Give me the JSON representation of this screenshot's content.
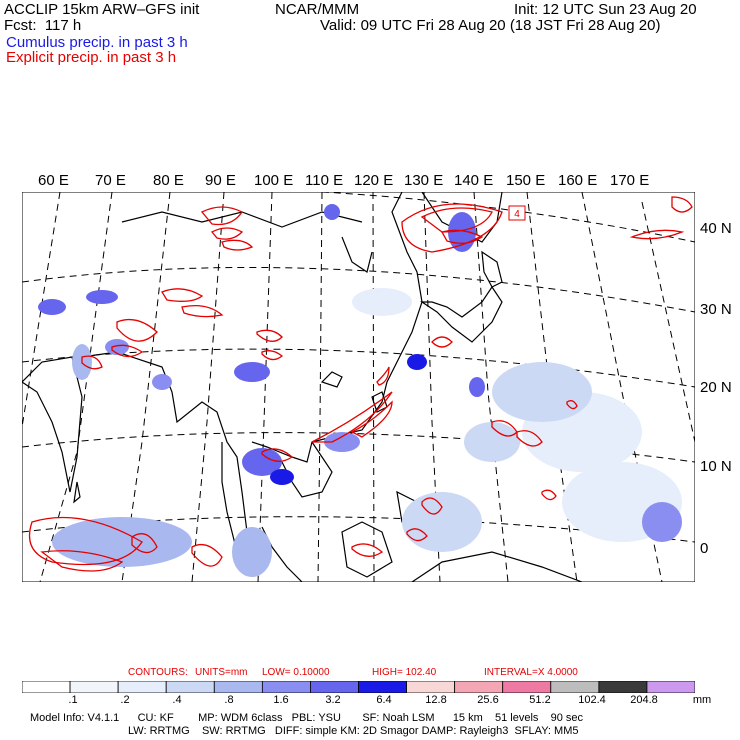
{
  "header": {
    "title": "ACCLIP 15km ARW–GFS init",
    "forecast": "Fcst:  117 h",
    "center": "NCAR/MMM",
    "init": "Init: 12 UTC Sun 23 Aug 20",
    "valid": "Valid: 09 UTC Fri 28 Aug 20 (18 JST Fri 28 Aug 20)",
    "cumulus_label": "Cumulus precip. in past 3 h",
    "explicit_label": "Explicit precip. in past 3 h"
  },
  "colors": {
    "cumulus": "#1a1ae6",
    "explicit": "#e60000",
    "land": "#000000"
  },
  "map": {
    "lon_labels": [
      "60 E",
      "70 E",
      "80 E",
      "90 E",
      "100 E",
      "110 E",
      "120 E",
      "130 E",
      "140 E",
      "150 E",
      "160 E",
      "170 E"
    ],
    "lat_labels": [
      "40 N",
      "30 N",
      "20 N",
      "10 N",
      "0"
    ],
    "box_label": "4"
  },
  "contours": {
    "title": "CONTOURS:",
    "units": "UNITS=mm",
    "low": "LOW= 0.10000",
    "high": "HIGH= 102.40",
    "interval": "INTERVAL=X 4.0000"
  },
  "colorbar": {
    "labels": [
      ".1",
      ".2",
      ".4",
      ".8",
      "1.6",
      "3.2",
      "6.4",
      "12.8",
      "25.6",
      "51.2",
      "102.4",
      "204.8"
    ],
    "unit": "mm",
    "fills": [
      "#ffffff",
      "#f2f6fb",
      "#e6eefb",
      "#ccd9f5",
      "#aab8f0",
      "#8a8ef0",
      "#6565ee",
      "#1a1ae6",
      "#f8d7d7",
      "#f4a6b4",
      "#ee7aa4",
      "#bdbdbd",
      "#3a3a3a",
      "#cc99ee"
    ]
  },
  "footer": {
    "line1": "Model Info: V4.1.1      CU: KF        MP: WDM 6class   PBL: YSU       SF: Noah LSM      15 km    51 levels    90 sec",
    "line2": "LW: RRTMG    SW: RRTMG   DIFF: simple KM: 2D Smagor DAMP: Rayleigh3  SFLAY: MM5"
  }
}
